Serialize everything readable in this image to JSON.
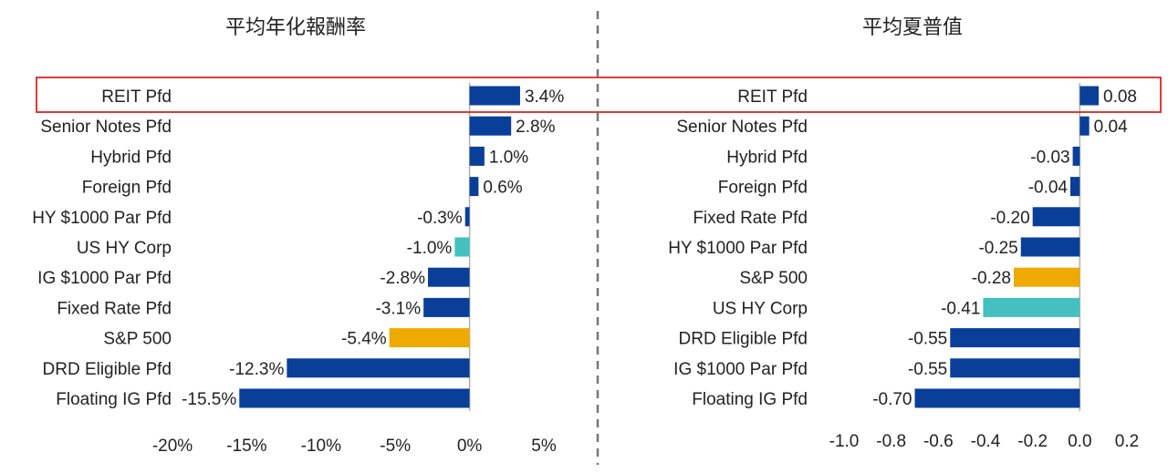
{
  "colors": {
    "primary": "#0a3f99",
    "highlight_teal": "#45c0c0",
    "highlight_gold": "#eeaa00",
    "divider": "#777777",
    "highlight_box": "#e53935",
    "axis": "#b0b0b0"
  },
  "chart_data": [
    {
      "type": "bar",
      "orientation": "horizontal",
      "title": "平均年化報酬率",
      "categories": [
        "REIT Pfd",
        "Senior Notes Pfd",
        "Hybrid Pfd",
        "Foreign Pfd",
        "HY $1000 Par Pfd",
        "US HY Corp",
        "IG $1000 Par Pfd",
        "Fixed Rate Pfd",
        "S&P 500",
        "DRD Eligible Pfd",
        "Floating IG Pfd"
      ],
      "values": [
        3.4,
        2.8,
        1.0,
        0.6,
        -0.3,
        -1.0,
        -2.8,
        -3.1,
        -5.4,
        -12.3,
        -15.5
      ],
      "value_labels": [
        "3.4%",
        "2.8%",
        "1.0%",
        "0.6%",
        "-0.3%",
        "-1.0%",
        "-2.8%",
        "-3.1%",
        "-5.4%",
        "-12.3%",
        "-15.5%"
      ],
      "bar_colors": [
        "primary",
        "primary",
        "primary",
        "primary",
        "primary",
        "highlight_teal",
        "primary",
        "primary",
        "highlight_gold",
        "primary",
        "primary"
      ],
      "xlim": [
        -20,
        5
      ],
      "xticks": [
        -20,
        -15,
        -10,
        -5,
        0,
        5
      ],
      "xtick_labels": [
        "-20%",
        "-15%",
        "-10%",
        "-5%",
        "0%",
        "5%"
      ],
      "grid": false
    },
    {
      "type": "bar",
      "orientation": "horizontal",
      "title": "平均夏普值",
      "categories": [
        "REIT Pfd",
        "Senior Notes Pfd",
        "Hybrid Pfd",
        "Foreign Pfd",
        "Fixed Rate Pfd",
        "HY $1000 Par Pfd",
        "S&P 500",
        "US HY Corp",
        "DRD Eligible Pfd",
        "IG $1000 Par Pfd",
        "Floating IG Pfd"
      ],
      "values": [
        0.08,
        0.04,
        -0.03,
        -0.04,
        -0.2,
        -0.25,
        -0.28,
        -0.41,
        -0.55,
        -0.55,
        -0.7
      ],
      "value_labels": [
        "0.08",
        "0.04",
        "-0.03",
        "-0.04",
        "-0.20",
        "-0.25",
        "-0.28",
        "-0.41",
        "-0.55",
        "-0.55",
        "-0.70"
      ],
      "bar_colors": [
        "primary",
        "primary",
        "primary",
        "primary",
        "primary",
        "primary",
        "highlight_gold",
        "highlight_teal",
        "primary",
        "primary",
        "primary"
      ],
      "xlim": [
        -1.0,
        0.2
      ],
      "xticks": [
        -1.0,
        -0.8,
        -0.6,
        -0.4,
        -0.2,
        0.0,
        0.2
      ],
      "xtick_labels": [
        "-1.0",
        "-0.8",
        "-0.6",
        "-0.4",
        "-0.2",
        "0.0",
        "0.2"
      ],
      "grid": false
    }
  ],
  "highlighted_row": "REIT Pfd"
}
